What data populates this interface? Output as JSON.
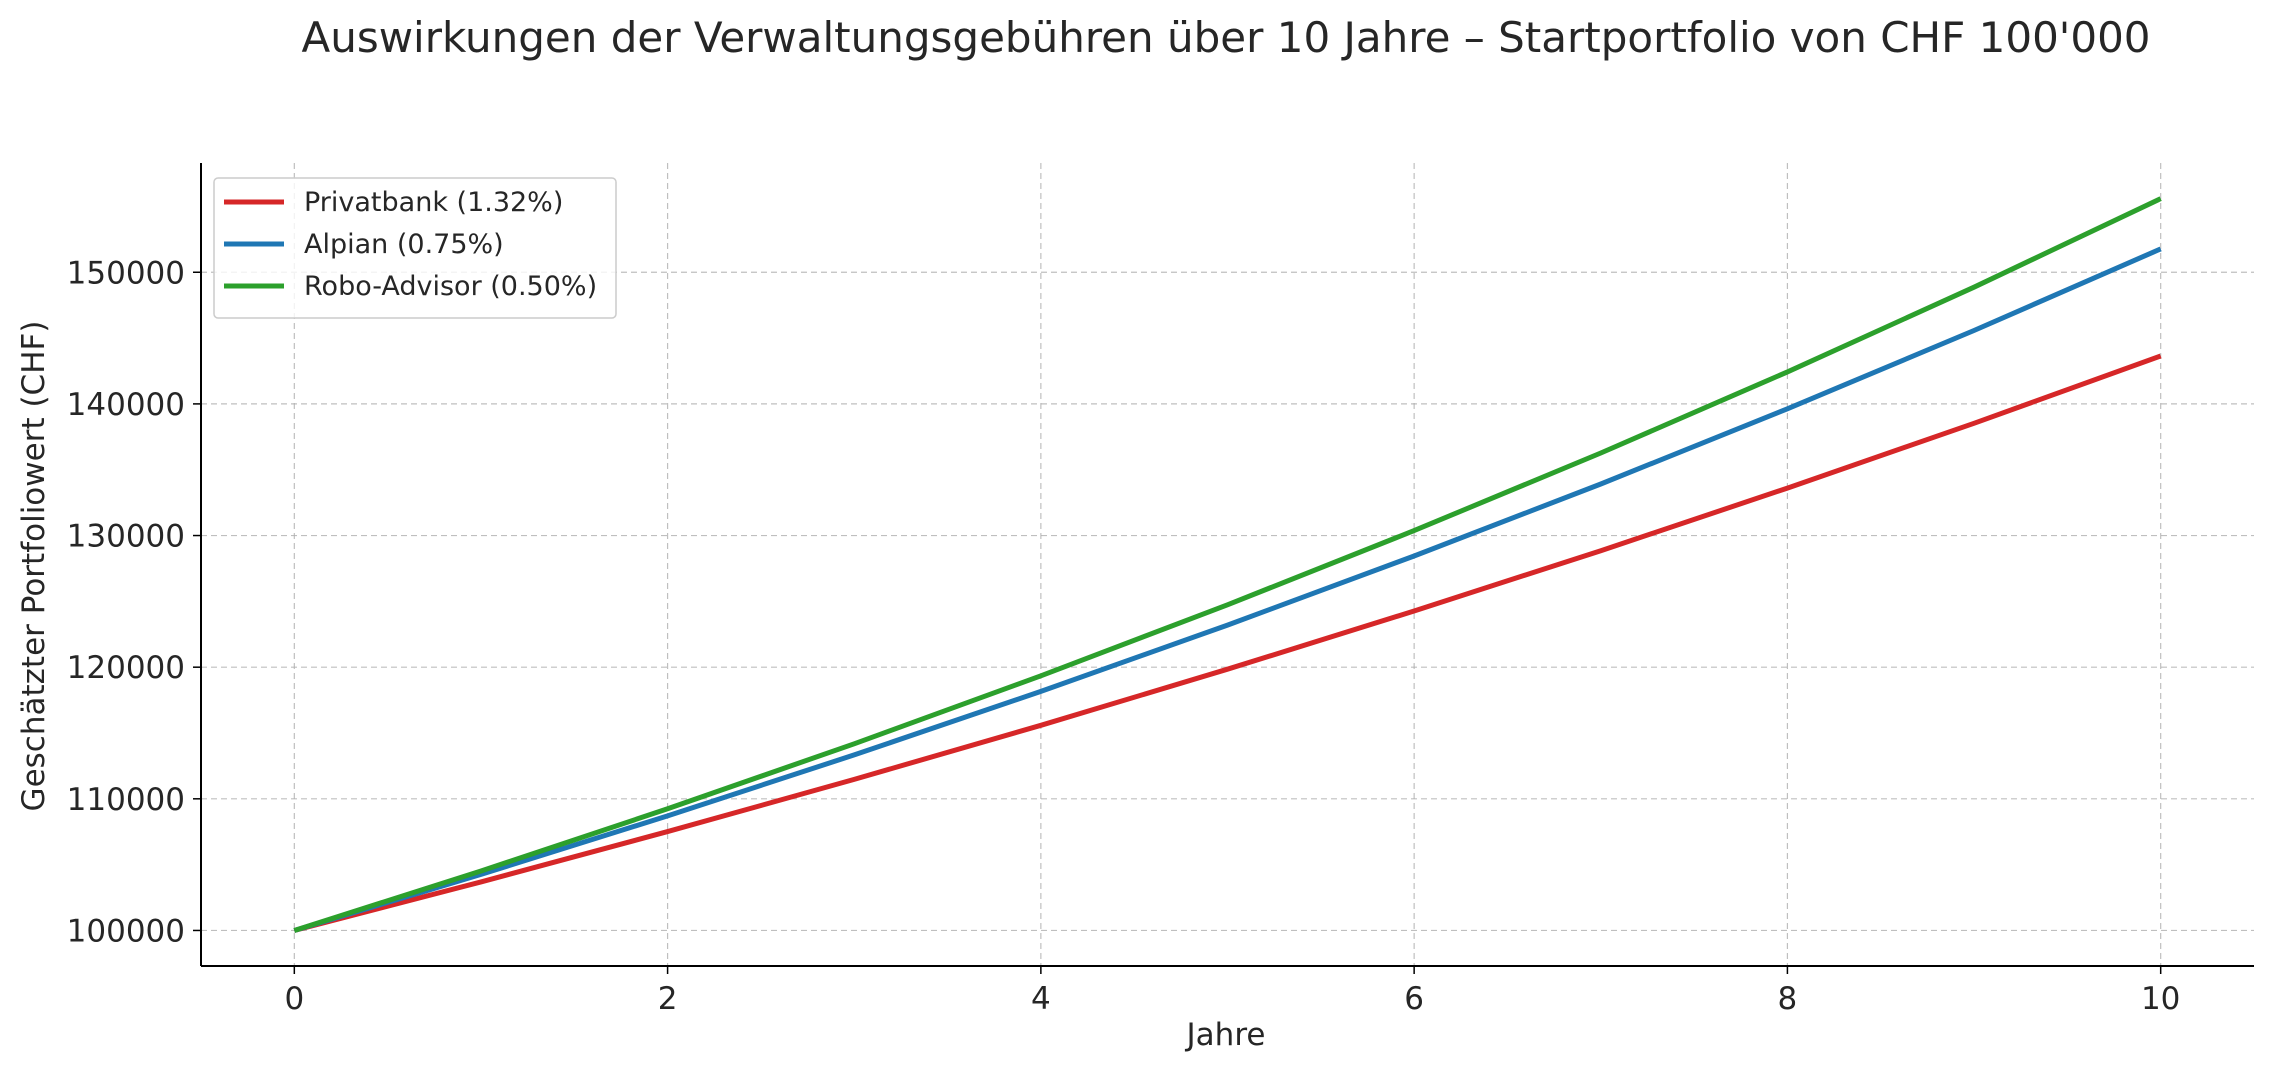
{
  "chart_data": {
    "type": "line",
    "title": "Auswirkungen der Verwaltungsgebühren über 10 Jahre – Startportfolio von CHF 100'000",
    "xlabel": "Jahre",
    "ylabel": "Geschätzter Portfoliowert (CHF)",
    "x": [
      0,
      1,
      2,
      3,
      4,
      5,
      6,
      7,
      8,
      9,
      10
    ],
    "xlim": [
      -0.5,
      10.5
    ],
    "ylim": [
      97300,
      158300
    ],
    "x_ticks": [
      0,
      2,
      4,
      6,
      8,
      10
    ],
    "y_ticks": [
      100000,
      110000,
      120000,
      130000,
      140000,
      150000
    ],
    "x_tick_labels": [
      "0",
      "2",
      "4",
      "6",
      "8",
      "10"
    ],
    "y_tick_labels": [
      "100000",
      "110000",
      "120000",
      "130000",
      "140000",
      "150000"
    ],
    "grid": true,
    "legend_position": "top-left",
    "series": [
      {
        "name": "Privatbank (1.32%)",
        "color": "#d62728",
        "values": [
          100000,
          103687,
          107511,
          111476,
          115587,
          119849,
          124268,
          128851,
          133603,
          138530,
          143638
        ]
      },
      {
        "name": "Alpian (0.75%)",
        "color": "#1f77b4",
        "values": [
          100000,
          104261,
          108703,
          113334,
          118163,
          123197,
          128446,
          133918,
          139624,
          145573,
          151775
        ]
      },
      {
        "name": "Robo-Advisor (0.50%)",
        "color": "#2ca02c",
        "values": [
          100000,
          104520,
          109245,
          114183,
          119344,
          124738,
          130376,
          136269,
          142429,
          148867,
          155595
        ]
      }
    ]
  }
}
